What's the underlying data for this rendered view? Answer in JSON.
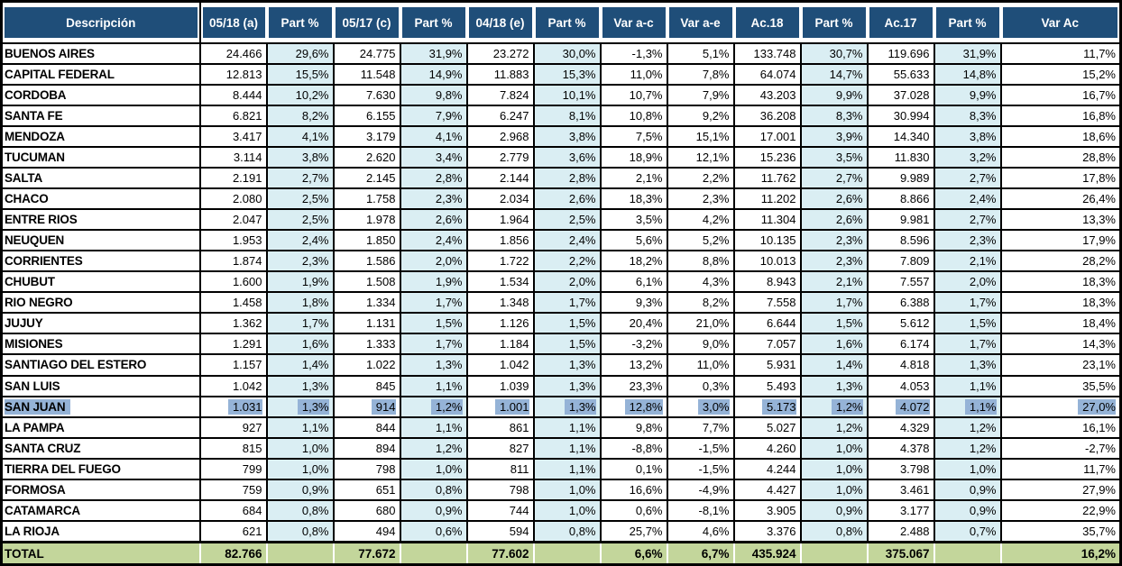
{
  "table": {
    "colors": {
      "header_bg": "#1F4E79",
      "header_text": "#FFFFFF",
      "shaded_column_bg": "#DAEEF3",
      "total_row_bg": "#C3D69B",
      "highlight_bg": "#95B3D7",
      "grid_border": "#000000"
    },
    "columns": [
      {
        "label": "Descripción",
        "shaded": false
      },
      {
        "label": "05/18 (a)",
        "shaded": false
      },
      {
        "label": "Part %",
        "shaded": true
      },
      {
        "label": "05/17 (c)",
        "shaded": false
      },
      {
        "label": "Part %",
        "shaded": true
      },
      {
        "label": "04/18 (e)",
        "shaded": false
      },
      {
        "label": "Part %",
        "shaded": true
      },
      {
        "label": "Var a-c",
        "shaded": false
      },
      {
        "label": "Var a-e",
        "shaded": false
      },
      {
        "label": "Ac.18",
        "shaded": false
      },
      {
        "label": "Part %",
        "shaded": true
      },
      {
        "label": "Ac.17",
        "shaded": false
      },
      {
        "label": "Part %",
        "shaded": true
      },
      {
        "label": "Var Ac",
        "shaded": false
      }
    ],
    "highlighted_row": "SAN JUAN",
    "rows": [
      {
        "name": "BUENOS AIRES",
        "highlighted": false,
        "values": [
          "24.466",
          "29,6%",
          "24.775",
          "31,9%",
          "23.272",
          "30,0%",
          "-1,3%",
          "5,1%",
          "133.748",
          "30,7%",
          "119.696",
          "31,9%",
          "11,7%"
        ]
      },
      {
        "name": "CAPITAL FEDERAL",
        "highlighted": false,
        "values": [
          "12.813",
          "15,5%",
          "11.548",
          "14,9%",
          "11.883",
          "15,3%",
          "11,0%",
          "7,8%",
          "64.074",
          "14,7%",
          "55.633",
          "14,8%",
          "15,2%"
        ]
      },
      {
        "name": "CORDOBA",
        "highlighted": false,
        "values": [
          "8.444",
          "10,2%",
          "7.630",
          "9,8%",
          "7.824",
          "10,1%",
          "10,7%",
          "7,9%",
          "43.203",
          "9,9%",
          "37.028",
          "9,9%",
          "16,7%"
        ]
      },
      {
        "name": "SANTA FE",
        "highlighted": false,
        "values": [
          "6.821",
          "8,2%",
          "6.155",
          "7,9%",
          "6.247",
          "8,1%",
          "10,8%",
          "9,2%",
          "36.208",
          "8,3%",
          "30.994",
          "8,3%",
          "16,8%"
        ]
      },
      {
        "name": "MENDOZA",
        "highlighted": false,
        "values": [
          "3.417",
          "4,1%",
          "3.179",
          "4,1%",
          "2.968",
          "3,8%",
          "7,5%",
          "15,1%",
          "17.001",
          "3,9%",
          "14.340",
          "3,8%",
          "18,6%"
        ]
      },
      {
        "name": "TUCUMAN",
        "highlighted": false,
        "values": [
          "3.114",
          "3,8%",
          "2.620",
          "3,4%",
          "2.779",
          "3,6%",
          "18,9%",
          "12,1%",
          "15.236",
          "3,5%",
          "11.830",
          "3,2%",
          "28,8%"
        ]
      },
      {
        "name": "SALTA",
        "highlighted": false,
        "values": [
          "2.191",
          "2,7%",
          "2.145",
          "2,8%",
          "2.144",
          "2,8%",
          "2,1%",
          "2,2%",
          "11.762",
          "2,7%",
          "9.989",
          "2,7%",
          "17,8%"
        ]
      },
      {
        "name": "CHACO",
        "highlighted": false,
        "values": [
          "2.080",
          "2,5%",
          "1.758",
          "2,3%",
          "2.034",
          "2,6%",
          "18,3%",
          "2,3%",
          "11.202",
          "2,6%",
          "8.866",
          "2,4%",
          "26,4%"
        ]
      },
      {
        "name": "ENTRE RIOS",
        "highlighted": false,
        "values": [
          "2.047",
          "2,5%",
          "1.978",
          "2,6%",
          "1.964",
          "2,5%",
          "3,5%",
          "4,2%",
          "11.304",
          "2,6%",
          "9.981",
          "2,7%",
          "13,3%"
        ]
      },
      {
        "name": "NEUQUEN",
        "highlighted": false,
        "values": [
          "1.953",
          "2,4%",
          "1.850",
          "2,4%",
          "1.856",
          "2,4%",
          "5,6%",
          "5,2%",
          "10.135",
          "2,3%",
          "8.596",
          "2,3%",
          "17,9%"
        ]
      },
      {
        "name": "CORRIENTES",
        "highlighted": false,
        "values": [
          "1.874",
          "2,3%",
          "1.586",
          "2,0%",
          "1.722",
          "2,2%",
          "18,2%",
          "8,8%",
          "10.013",
          "2,3%",
          "7.809",
          "2,1%",
          "28,2%"
        ]
      },
      {
        "name": "CHUBUT",
        "highlighted": false,
        "values": [
          "1.600",
          "1,9%",
          "1.508",
          "1,9%",
          "1.534",
          "2,0%",
          "6,1%",
          "4,3%",
          "8.943",
          "2,1%",
          "7.557",
          "2,0%",
          "18,3%"
        ]
      },
      {
        "name": "RIO NEGRO",
        "highlighted": false,
        "values": [
          "1.458",
          "1,8%",
          "1.334",
          "1,7%",
          "1.348",
          "1,7%",
          "9,3%",
          "8,2%",
          "7.558",
          "1,7%",
          "6.388",
          "1,7%",
          "18,3%"
        ]
      },
      {
        "name": "JUJUY",
        "highlighted": false,
        "values": [
          "1.362",
          "1,7%",
          "1.131",
          "1,5%",
          "1.126",
          "1,5%",
          "20,4%",
          "21,0%",
          "6.644",
          "1,5%",
          "5.612",
          "1,5%",
          "18,4%"
        ]
      },
      {
        "name": "MISIONES",
        "highlighted": false,
        "values": [
          "1.291",
          "1,6%",
          "1.333",
          "1,7%",
          "1.184",
          "1,5%",
          "-3,2%",
          "9,0%",
          "7.057",
          "1,6%",
          "6.174",
          "1,7%",
          "14,3%"
        ]
      },
      {
        "name": "SANTIAGO DEL ESTERO",
        "highlighted": false,
        "values": [
          "1.157",
          "1,4%",
          "1.022",
          "1,3%",
          "1.042",
          "1,3%",
          "13,2%",
          "11,0%",
          "5.931",
          "1,4%",
          "4.818",
          "1,3%",
          "23,1%"
        ]
      },
      {
        "name": "SAN LUIS",
        "highlighted": false,
        "values": [
          "1.042",
          "1,3%",
          "845",
          "1,1%",
          "1.039",
          "1,3%",
          "23,3%",
          "0,3%",
          "5.493",
          "1,3%",
          "4.053",
          "1,1%",
          "35,5%"
        ]
      },
      {
        "name": "SAN JUAN",
        "highlighted": true,
        "values": [
          "1.031",
          "1,3%",
          "914",
          "1,2%",
          "1.001",
          "1,3%",
          "12,8%",
          "3,0%",
          "5.173",
          "1,2%",
          "4.072",
          "1,1%",
          "27,0%"
        ]
      },
      {
        "name": "LA PAMPA",
        "highlighted": false,
        "values": [
          "927",
          "1,1%",
          "844",
          "1,1%",
          "861",
          "1,1%",
          "9,8%",
          "7,7%",
          "5.027",
          "1,2%",
          "4.329",
          "1,2%",
          "16,1%"
        ]
      },
      {
        "name": "SANTA CRUZ",
        "highlighted": false,
        "values": [
          "815",
          "1,0%",
          "894",
          "1,2%",
          "827",
          "1,1%",
          "-8,8%",
          "-1,5%",
          "4.260",
          "1,0%",
          "4.378",
          "1,2%",
          "-2,7%"
        ]
      },
      {
        "name": "TIERRA DEL FUEGO",
        "highlighted": false,
        "values": [
          "799",
          "1,0%",
          "798",
          "1,0%",
          "811",
          "1,1%",
          "0,1%",
          "-1,5%",
          "4.244",
          "1,0%",
          "3.798",
          "1,0%",
          "11,7%"
        ]
      },
      {
        "name": "FORMOSA",
        "highlighted": false,
        "values": [
          "759",
          "0,9%",
          "651",
          "0,8%",
          "798",
          "1,0%",
          "16,6%",
          "-4,9%",
          "4.427",
          "1,0%",
          "3.461",
          "0,9%",
          "27,9%"
        ]
      },
      {
        "name": "CATAMARCA",
        "highlighted": false,
        "values": [
          "684",
          "0,8%",
          "680",
          "0,9%",
          "744",
          "1,0%",
          "0,6%",
          "-8,1%",
          "3.905",
          "0,9%",
          "3.177",
          "0,9%",
          "22,9%"
        ]
      },
      {
        "name": "LA RIOJA",
        "highlighted": false,
        "values": [
          "621",
          "0,8%",
          "494",
          "0,6%",
          "594",
          "0,8%",
          "25,7%",
          "4,6%",
          "3.376",
          "0,8%",
          "2.488",
          "0,7%",
          "35,7%"
        ]
      }
    ],
    "total_row": {
      "name": "TOTAL",
      "values": [
        "82.766",
        "",
        "77.672",
        "",
        "77.602",
        "",
        "6,6%",
        "6,7%",
        "435.924",
        "",
        "375.067",
        "",
        "16,2%"
      ]
    }
  }
}
